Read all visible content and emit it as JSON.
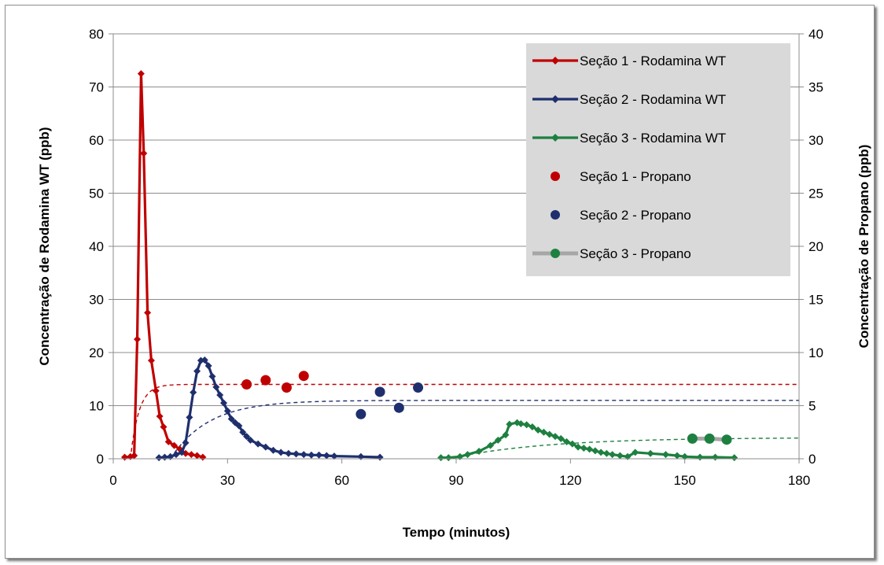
{
  "chart_data": {
    "type": "line",
    "xlabel": "Tempo (minutos)",
    "ylabel": "Concentração de Rodamina WT (ppb)",
    "y2label": "Concentração de Propano (ppb)",
    "xlim": [
      0,
      180
    ],
    "ylim": [
      0,
      80
    ],
    "y2lim": [
      0,
      40
    ],
    "x_ticks": [
      0,
      30,
      60,
      90,
      120,
      150,
      180
    ],
    "y_ticks": [
      0,
      10,
      20,
      30,
      40,
      50,
      60,
      70,
      80
    ],
    "y2_ticks": [
      0,
      5,
      10,
      15,
      20,
      25,
      30,
      35,
      40
    ],
    "grid": "horizontal",
    "legend_position": "top-right",
    "series": [
      {
        "name": "Seção 1 - Rodamina WT",
        "kind": "line-marker",
        "axis": "left",
        "color": "#c00000",
        "x": [
          3,
          4.5,
          5.5,
          6.3,
          7.3,
          8,
          9,
          10,
          11.2,
          12.2,
          13.2,
          14.5,
          16,
          17.5,
          19,
          20.5,
          22,
          23.5
        ],
        "y": [
          0.3,
          0.4,
          0.6,
          22.5,
          72.5,
          57.5,
          27.5,
          18.5,
          12.8,
          8,
          6,
          3.2,
          2.5,
          1.8,
          1,
          0.8,
          0.6,
          0.3
        ]
      },
      {
        "name": "Seção 2 - Rodamina WT",
        "kind": "line-marker",
        "axis": "left",
        "color": "#1f2f6e",
        "x": [
          12,
          13.5,
          15,
          16.5,
          18,
          19,
          20,
          21,
          22,
          23,
          24,
          25,
          26,
          27,
          28,
          29,
          30,
          31,
          32,
          33,
          34,
          35,
          36,
          38,
          40,
          42,
          44,
          46,
          48,
          50,
          52,
          54,
          56,
          58,
          65,
          70
        ],
        "y": [
          0.2,
          0.3,
          0.4,
          0.8,
          1.2,
          3,
          7.8,
          12.5,
          16.5,
          18.5,
          18.6,
          17.5,
          15.5,
          13.5,
          12,
          10.5,
          9,
          7.5,
          6.8,
          6.2,
          5,
          4.2,
          3.5,
          2.8,
          2.2,
          1.6,
          1.2,
          1,
          0.9,
          0.8,
          0.7,
          0.7,
          0.6,
          0.5,
          0.4,
          0.3
        ]
      },
      {
        "name": "Seção 3 - Rodamina WT",
        "kind": "line-marker",
        "axis": "left",
        "color": "#1e8040",
        "x": [
          86,
          88,
          91,
          93,
          96,
          99,
          101,
          103,
          104,
          106,
          107,
          108.5,
          110,
          111.5,
          113,
          114.5,
          116,
          117.5,
          119,
          120.5,
          122,
          123.5,
          125,
          126.5,
          128,
          129.5,
          131,
          133,
          135,
          137,
          141,
          145,
          148,
          150,
          154,
          158,
          163
        ],
        "y": [
          0.2,
          0.2,
          0.4,
          0.8,
          1.4,
          2.5,
          3.5,
          4.5,
          6.5,
          6.8,
          6.6,
          6.4,
          6,
          5.4,
          5,
          4.6,
          4.2,
          3.8,
          3.2,
          2.8,
          2.2,
          2,
          1.8,
          1.5,
          1.2,
          1,
          0.8,
          0.6,
          0.4,
          1.2,
          1,
          0.8,
          0.6,
          0.4,
          0.3,
          0.3,
          0.2
        ]
      },
      {
        "name": "Seção 1 - Propano",
        "kind": "points",
        "axis": "right",
        "color": "#c00000",
        "x": [
          35,
          40,
          45.5,
          50
        ],
        "y": [
          7,
          7.4,
          6.7,
          7.8
        ]
      },
      {
        "name": "Seção 2 - Propano",
        "kind": "points",
        "axis": "right",
        "color": "#1f2f6e",
        "x": [
          65,
          70,
          75,
          80
        ],
        "y": [
          4.2,
          6.3,
          4.8,
          6.7
        ]
      },
      {
        "name": "Seção 3 - Propano",
        "kind": "points-line",
        "axis": "right",
        "color": "#1e8040",
        "x": [
          152,
          156.5,
          161
        ],
        "y": [
          1.9,
          1.9,
          1.8
        ]
      }
    ],
    "fitted_curves": [
      {
        "axis": "left",
        "color": "#c00000",
        "start": 4.5,
        "plateau": 14,
        "rate": 0.45
      },
      {
        "axis": "left",
        "color": "#1f2f6e",
        "start": 15,
        "plateau": 11,
        "rate": 0.1
      },
      {
        "axis": "left",
        "color": "#1e8040",
        "start": 88,
        "plateau": 4,
        "rate": 0.04
      }
    ]
  }
}
